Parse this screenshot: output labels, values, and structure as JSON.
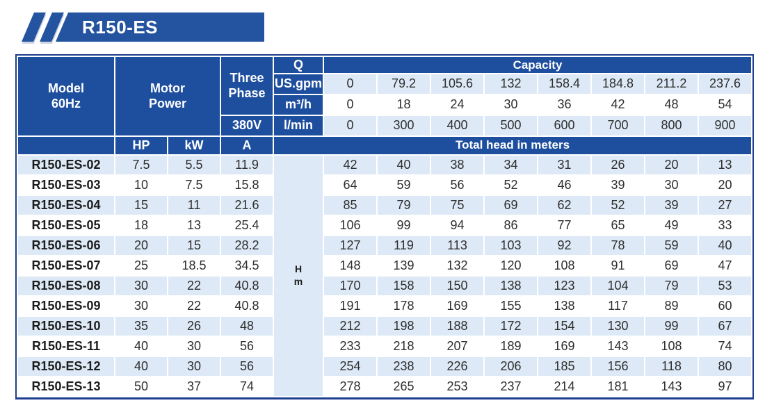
{
  "banner": {
    "title": "R150-ES"
  },
  "colors": {
    "banner_blue": "#24539f",
    "header_blue": "#1e4f9f",
    "frame_blue": "#1d3e8f",
    "row_alt_blue": "#dde9f6",
    "row_white": "#ffffff",
    "text_dark": "#2e2e2e"
  },
  "table": {
    "header": {
      "model_line1": "Model",
      "model_line2": "60Hz",
      "motor_line1": "Motor",
      "motor_line2": "Power",
      "phase_line1": "Three",
      "phase_line2": "Phase",
      "voltage": "380V",
      "q": "Q",
      "unit_usgpm": "US.gpm",
      "unit_m3h": "m³/h",
      "unit_lmin": "l/min",
      "capacity": "Capacity",
      "total_head": "Total head in meters",
      "hp": "HP",
      "kw": "kW",
      "amp": "A",
      "head_line1": "H",
      "head_line2": "m"
    },
    "capacity": {
      "us_gpm": [
        "0",
        "79.2",
        "105.6",
        "132",
        "158.4",
        "184.8",
        "211.2",
        "237.6"
      ],
      "m3_h": [
        "0",
        "18",
        "24",
        "30",
        "36",
        "42",
        "48",
        "54"
      ],
      "l_min": [
        "0",
        "300",
        "400",
        "500",
        "600",
        "700",
        "800",
        "900"
      ]
    },
    "rows": [
      {
        "model": "R150-ES-02",
        "hp": "7.5",
        "kw": "5.5",
        "amp": "11.9",
        "head": [
          "42",
          "40",
          "38",
          "34",
          "31",
          "26",
          "20",
          "13"
        ]
      },
      {
        "model": "R150-ES-03",
        "hp": "10",
        "kw": "7.5",
        "amp": "15.8",
        "head": [
          "64",
          "59",
          "56",
          "52",
          "46",
          "39",
          "30",
          "20"
        ]
      },
      {
        "model": "R150-ES-04",
        "hp": "15",
        "kw": "11",
        "amp": "21.6",
        "head": [
          "85",
          "79",
          "75",
          "69",
          "62",
          "52",
          "39",
          "27"
        ]
      },
      {
        "model": "R150-ES-05",
        "hp": "18",
        "kw": "13",
        "amp": "25.4",
        "head": [
          "106",
          "99",
          "94",
          "86",
          "77",
          "65",
          "49",
          "33"
        ]
      },
      {
        "model": "R150-ES-06",
        "hp": "20",
        "kw": "15",
        "amp": "28.2",
        "head": [
          "127",
          "119",
          "113",
          "103",
          "92",
          "78",
          "59",
          "40"
        ]
      },
      {
        "model": "R150-ES-07",
        "hp": "25",
        "kw": "18.5",
        "amp": "34.5",
        "head": [
          "148",
          "139",
          "132",
          "120",
          "108",
          "91",
          "69",
          "47"
        ]
      },
      {
        "model": "R150-ES-08",
        "hp": "30",
        "kw": "22",
        "amp": "40.8",
        "head": [
          "170",
          "158",
          "150",
          "138",
          "123",
          "104",
          "79",
          "53"
        ]
      },
      {
        "model": "R150-ES-09",
        "hp": "30",
        "kw": "22",
        "amp": "40.8",
        "head": [
          "191",
          "178",
          "169",
          "155",
          "138",
          "117",
          "89",
          "60"
        ]
      },
      {
        "model": "R150-ES-10",
        "hp": "35",
        "kw": "26",
        "amp": "48",
        "head": [
          "212",
          "198",
          "188",
          "172",
          "154",
          "130",
          "99",
          "67"
        ]
      },
      {
        "model": "R150-ES-11",
        "hp": "40",
        "kw": "30",
        "amp": "56",
        "head": [
          "233",
          "218",
          "207",
          "189",
          "169",
          "143",
          "108",
          "74"
        ]
      },
      {
        "model": "R150-ES-12",
        "hp": "40",
        "kw": "30",
        "amp": "56",
        "head": [
          "254",
          "238",
          "226",
          "206",
          "185",
          "156",
          "118",
          "80"
        ]
      },
      {
        "model": "R150-ES-13",
        "hp": "50",
        "kw": "37",
        "amp": "74",
        "head": [
          "278",
          "265",
          "253",
          "237",
          "214",
          "181",
          "143",
          "97"
        ]
      }
    ]
  }
}
